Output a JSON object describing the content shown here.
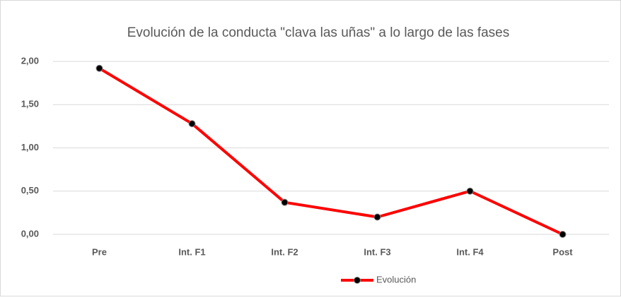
{
  "chart_data": {
    "type": "line",
    "title": "Evolución de la conducta \"clava las uñas\" a lo largo de las fases",
    "categories": [
      "Pre",
      "Int. F1",
      "Int. F2",
      "Int. F3",
      "Int. F4",
      "Post"
    ],
    "series": [
      {
        "name": "Evolución",
        "color": "#ff0000",
        "values": [
          1.92,
          1.28,
          0.37,
          0.2,
          0.5,
          0
        ]
      }
    ],
    "ylim": [
      0,
      2
    ],
    "yticks": [
      {
        "value": 0,
        "label": "0,00"
      },
      {
        "value": 0.5,
        "label": "0,50"
      },
      {
        "value": 1,
        "label": "1,00"
      },
      {
        "value": 1.5,
        "label": "1,50"
      },
      {
        "value": 2,
        "label": "2,00"
      }
    ],
    "grid": true,
    "legend": "bottom"
  }
}
